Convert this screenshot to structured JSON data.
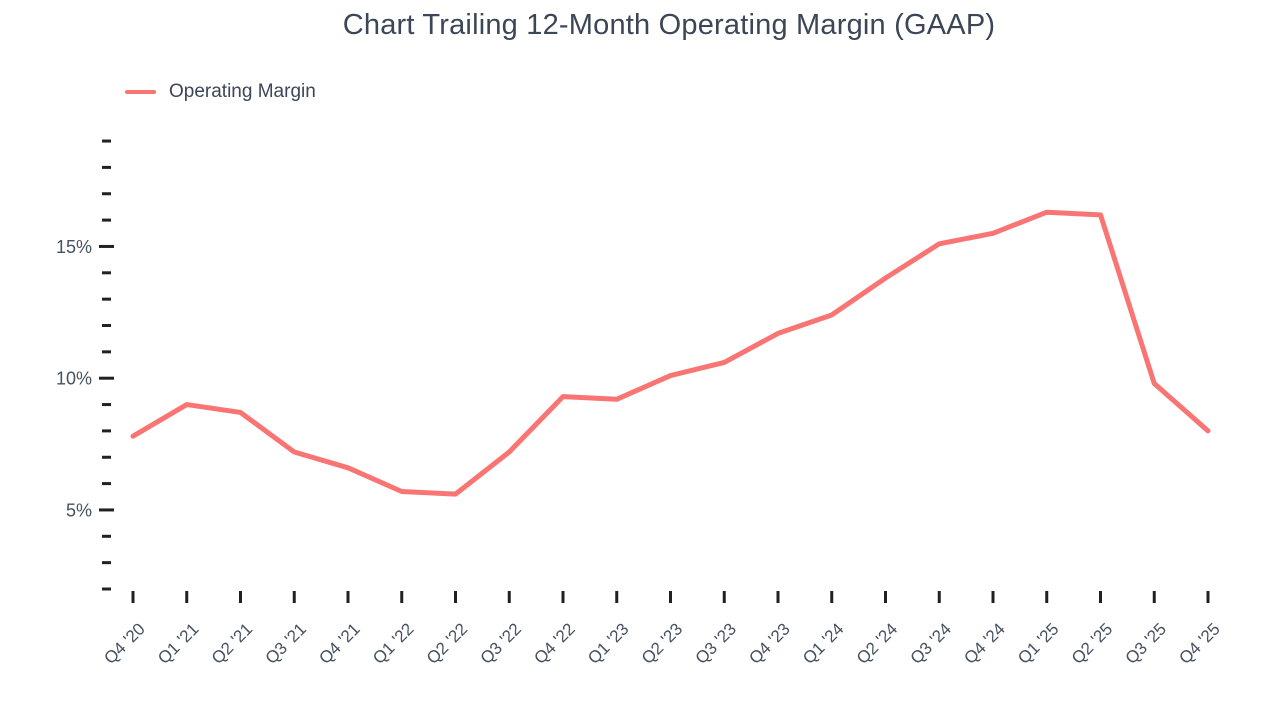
{
  "title": "Chart Trailing 12-Month Operating Margin (GAAP)",
  "legend": {
    "label": "Operating Margin",
    "color": "#f97573"
  },
  "chart_data": {
    "type": "line",
    "title": "Chart Trailing 12-Month Operating Margin (GAAP)",
    "xlabel": "",
    "ylabel": "",
    "categories": [
      "Q4 '20",
      "Q1 '21",
      "Q2 '21",
      "Q3 '21",
      "Q4 '21",
      "Q1 '22",
      "Q2 '22",
      "Q3 '22",
      "Q4 '22",
      "Q1 '23",
      "Q2 '23",
      "Q3 '23",
      "Q4 '23",
      "Q1 '24",
      "Q2 '24",
      "Q3 '24",
      "Q4 '24",
      "Q1 '25",
      "Q2 '25",
      "Q3 '25",
      "Q4 '25"
    ],
    "series": [
      {
        "name": "Operating Margin",
        "unit": "%",
        "color": "#f97573",
        "values": [
          7.8,
          9.0,
          8.7,
          7.2,
          6.6,
          5.7,
          5.6,
          7.2,
          9.3,
          9.2,
          10.1,
          10.6,
          11.7,
          12.4,
          13.8,
          15.1,
          15.5,
          16.3,
          16.2,
          9.8,
          8.0
        ]
      }
    ],
    "ylim": [
      2,
      19
    ],
    "y_minor_tick_step": 1,
    "y_major_ticks": [
      5,
      10,
      15
    ],
    "y_major_tick_labels": [
      "5%",
      "10%",
      "15%"
    ],
    "grid": false,
    "legend_position": "top-left",
    "x_label_rotation": -45,
    "tick_color": "#212121",
    "axis_text_color": "#465161"
  }
}
